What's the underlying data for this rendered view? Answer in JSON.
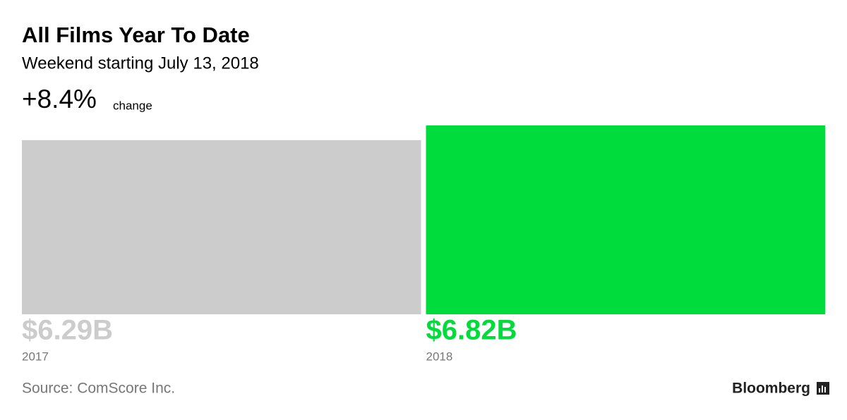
{
  "chart_data": {
    "type": "bar",
    "title": "All Films Year To Date",
    "subtitle": "Weekend starting July 13, 2018",
    "change": "+8.4%",
    "change_label": "change",
    "categories": [
      "2017",
      "2018"
    ],
    "values": [
      6.29,
      6.82
    ],
    "value_labels": [
      "$6.29B",
      "$6.82B"
    ],
    "colors": [
      "#cccccc",
      "#00dc3c"
    ],
    "source": "Source: ComScore Inc.",
    "brand": "Bloomberg"
  }
}
